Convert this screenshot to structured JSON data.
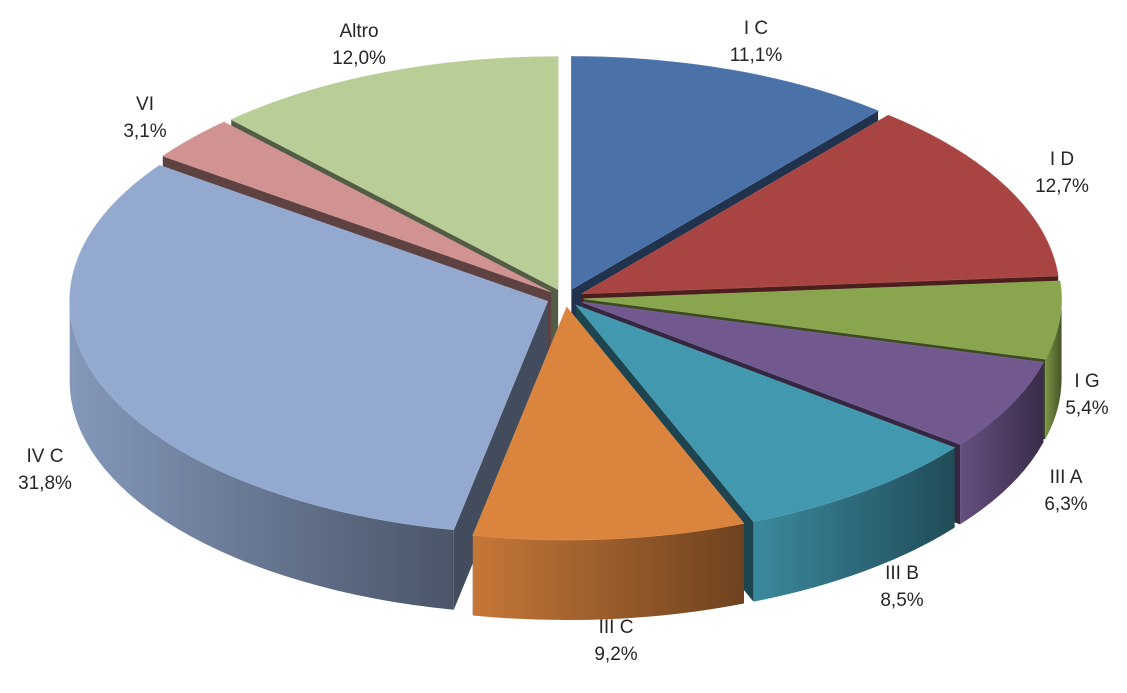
{
  "chart_data": {
    "type": "pie",
    "style": "3d-exploded",
    "title": "",
    "decimal_separator": ",",
    "slices": [
      {
        "label": "I C",
        "value": 11.1,
        "display": "11,1%",
        "color": "#4A72A8"
      },
      {
        "label": "I D",
        "value": 12.7,
        "display": "12,7%",
        "color": "#A84542"
      },
      {
        "label": "I G",
        "value": 5.4,
        "display": "5,4%",
        "color": "#89A54E"
      },
      {
        "label": "III A",
        "value": 6.3,
        "display": "6,3%",
        "color": "#71588F"
      },
      {
        "label": "III B",
        "value": 8.5,
        "display": "8,5%",
        "color": "#4198AF"
      },
      {
        "label": "III C",
        "value": 9.2,
        "display": "9,2%",
        "color": "#DB843D"
      },
      {
        "label": "IV C",
        "value": 31.8,
        "display": "31,8%",
        "color": "#93A9CF"
      },
      {
        "label": "VI",
        "value": 3.1,
        "display": "3,1%",
        "color": "#D19392"
      },
      {
        "label": "Altro",
        "value": 12.0,
        "display": "12,0%",
        "color": "#B9CD96"
      }
    ]
  }
}
